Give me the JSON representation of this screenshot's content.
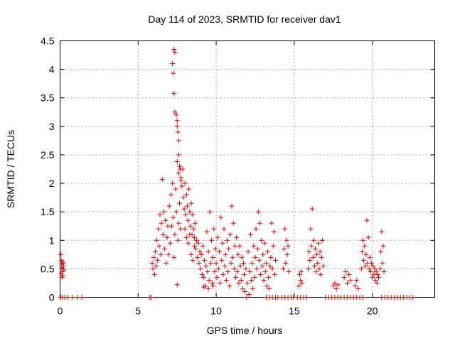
{
  "chart_data": {
    "type": "scatter",
    "title": "Day 114 of 2023, SRMTID for receiver dav1",
    "xlabel": "GPS time / hours",
    "ylabel": "SRMTID / TECUs",
    "xlim": [
      0,
      24
    ],
    "ylim": [
      0,
      4.5
    ],
    "xticks": [
      0,
      5,
      10,
      15,
      20
    ],
    "xtick_labels": [
      "0",
      "5",
      "10",
      "15",
      "20"
    ],
    "yticks": [
      0,
      0.5,
      1,
      1.5,
      2,
      2.5,
      3,
      3.5,
      4,
      4.5
    ],
    "ytick_labels": [
      "0",
      "0.5",
      "1",
      "1.5",
      "2",
      "2.5",
      "3",
      "3.5",
      "4",
      "4.5"
    ],
    "grid": true,
    "marker": "+",
    "color": "#e00000",
    "series": [
      {
        "name": "dav1",
        "points": [
          [
            0.05,
            0.75
          ],
          [
            0.08,
            0.65
          ],
          [
            0.1,
            0.58
          ],
          [
            0.12,
            0.52
          ],
          [
            0.15,
            0.45
          ],
          [
            0.18,
            0.38
          ],
          [
            0.2,
            0.6
          ],
          [
            0.22,
            0.55
          ],
          [
            0.25,
            0.48
          ],
          [
            0.07,
            0.42
          ],
          [
            0.12,
            0.35
          ],
          [
            0.17,
            0.62
          ],
          [
            0.05,
            0
          ],
          [
            0.15,
            0
          ],
          [
            0.3,
            0
          ],
          [
            0.5,
            0
          ],
          [
            0.8,
            0
          ],
          [
            1.1,
            0
          ],
          [
            1.4,
            0
          ],
          [
            5.75,
            0
          ],
          [
            5.85,
            0
          ],
          [
            5.9,
            0.6
          ],
          [
            5.95,
            0.5
          ],
          [
            6.0,
            0.7
          ],
          [
            6.05,
            0.4
          ],
          [
            6.1,
            0.8
          ],
          [
            6.15,
            0.55
          ],
          [
            6.2,
            1.0
          ],
          [
            6.25,
            0.65
          ],
          [
            6.3,
            1.2
          ],
          [
            6.35,
            0.9
          ],
          [
            6.4,
            1.45
          ],
          [
            6.45,
            0.75
          ],
          [
            6.5,
            1.3
          ],
          [
            6.55,
            2.07
          ],
          [
            6.6,
            1.1
          ],
          [
            6.65,
            1.5
          ],
          [
            6.7,
            0.85
          ],
          [
            6.75,
            1.35
          ],
          [
            6.8,
            0.6
          ],
          [
            6.85,
            1.05
          ],
          [
            6.9,
            1.25
          ],
          [
            6.95,
            0.75
          ],
          [
            7.0,
            1.6
          ],
          [
            7.05,
            0.95
          ],
          [
            7.1,
            1.8
          ],
          [
            7.15,
            1.25
          ],
          [
            7.2,
            2.0
          ],
          [
            7.25,
            1.4
          ],
          [
            7.3,
            0.7
          ],
          [
            7.35,
            1.1
          ],
          [
            7.4,
            1.9
          ],
          [
            7.45,
            1.5
          ],
          [
            7.5,
            0.22
          ],
          [
            7.55,
            1.0
          ],
          [
            7.6,
            1.3
          ],
          [
            7.65,
            1.65
          ],
          [
            7.7,
            1.2
          ],
          [
            7.2,
            4.1
          ],
          [
            7.25,
            3.93
          ],
          [
            7.3,
            3.58
          ],
          [
            7.35,
            3.25
          ],
          [
            7.3,
            4.35
          ],
          [
            7.35,
            4.3
          ],
          [
            7.45,
            3.2
          ],
          [
            7.5,
            3.0
          ],
          [
            7.55,
            2.9
          ],
          [
            7.6,
            2.75
          ],
          [
            7.5,
            3.1
          ],
          [
            7.6,
            2.5
          ],
          [
            7.65,
            2.3
          ],
          [
            7.7,
            2.25
          ],
          [
            7.75,
            2.05
          ],
          [
            7.5,
            2.38
          ],
          [
            7.6,
            2.18
          ],
          [
            7.75,
            2.1
          ],
          [
            7.8,
            1.95
          ],
          [
            7.85,
            2.25
          ],
          [
            7.9,
            1.75
          ],
          [
            7.95,
            1.55
          ],
          [
            8.0,
            2.0
          ],
          [
            8.05,
            1.45
          ],
          [
            8.1,
            1.8
          ],
          [
            8.15,
            1.6
          ],
          [
            8.2,
            1.35
          ],
          [
            8.25,
            1.9
          ],
          [
            8.3,
            1.5
          ],
          [
            8.35,
            1.25
          ],
          [
            8.4,
            1.65
          ],
          [
            8.45,
            1.1
          ],
          [
            8.5,
            1.45
          ],
          [
            8.55,
            1.2
          ],
          [
            8.6,
            0.9
          ],
          [
            8.65,
            1.3
          ],
          [
            8.7,
            0.85
          ],
          [
            8.75,
            1.0
          ],
          [
            8.8,
            0.7
          ],
          [
            8.85,
            0.95
          ],
          [
            8.9,
            0.6
          ],
          [
            8.95,
            0.8
          ],
          [
            8.0,
            1.2
          ],
          [
            8.1,
            1.05
          ],
          [
            8.2,
            0.95
          ],
          [
            8.3,
            1.1
          ],
          [
            8.4,
            0.75
          ],
          [
            8.5,
            0.65
          ],
          [
            8.6,
            1.05
          ],
          [
            9.0,
            0.5
          ],
          [
            9.05,
            0.75
          ],
          [
            9.1,
            0.4
          ],
          [
            9.15,
            0.9
          ],
          [
            9.2,
            0.35
          ],
          [
            9.25,
            0.65
          ],
          [
            9.3,
            0.2
          ],
          [
            9.35,
            0.55
          ],
          [
            9.4,
            1.15
          ],
          [
            9.45,
            0.45
          ],
          [
            9.5,
            0.8
          ],
          [
            9.55,
            0.3
          ],
          [
            9.6,
            1.5
          ],
          [
            9.65,
            0.6
          ],
          [
            9.7,
            1.0
          ],
          [
            9.75,
            0.25
          ],
          [
            9.8,
            0.7
          ],
          [
            9.85,
            1.2
          ],
          [
            9.9,
            0.45
          ],
          [
            9.95,
            0.85
          ],
          [
            9.2,
            0.18
          ],
          [
            9.5,
            0.15
          ],
          [
            9.8,
            0.2
          ],
          [
            10.0,
            0.6
          ],
          [
            10.05,
            0.35
          ],
          [
            10.1,
            1.05
          ],
          [
            10.15,
            0.5
          ],
          [
            10.2,
            0.8
          ],
          [
            10.25,
            0.25
          ],
          [
            10.3,
            1.4
          ],
          [
            10.35,
            0.65
          ],
          [
            10.4,
            0.95
          ],
          [
            10.45,
            0.4
          ],
          [
            10.5,
            1.2
          ],
          [
            10.55,
            0.55
          ],
          [
            10.6,
            0.75
          ],
          [
            10.65,
            0.3
          ],
          [
            10.7,
            1.0
          ],
          [
            10.75,
            0.45
          ],
          [
            10.8,
            0.85
          ],
          [
            10.85,
            0.2
          ],
          [
            10.9,
            1.1
          ],
          [
            10.95,
            0.6
          ],
          [
            11.0,
            1.6
          ],
          [
            11.05,
            0.7
          ],
          [
            11.1,
            1.3
          ],
          [
            11.15,
            0.5
          ],
          [
            11.2,
            0.9
          ],
          [
            11.25,
            0.35
          ],
          [
            11.3,
            1.05
          ],
          [
            11.35,
            0.45
          ],
          [
            11.4,
            0.75
          ],
          [
            11.45,
            0.25
          ],
          [
            11.5,
            0.9
          ],
          [
            11.55,
            0.55
          ],
          [
            11.6,
            0.3
          ],
          [
            11.65,
            0.7
          ],
          [
            11.7,
            0.15
          ],
          [
            11.75,
            0.6
          ],
          [
            11.8,
            0.4
          ],
          [
            11.85,
            0.1
          ],
          [
            11.9,
            0.5
          ],
          [
            11.95,
            0
          ],
          [
            12.0,
            0.25
          ],
          [
            12.05,
            0.8
          ],
          [
            12.1,
            0.05
          ],
          [
            12.15,
            0.45
          ],
          [
            12.2,
            1.1
          ],
          [
            12.25,
            0.3
          ],
          [
            12.3,
            0.6
          ],
          [
            12.35,
            0.15
          ],
          [
            12.4,
            0.9
          ],
          [
            12.45,
            0.35
          ],
          [
            12.5,
            0.7
          ],
          [
            12.55,
            1.2
          ],
          [
            12.6,
            0.5
          ],
          [
            12.65,
            0.85
          ],
          [
            12.7,
            1.5
          ],
          [
            12.75,
            0.65
          ],
          [
            12.8,
            1.3
          ],
          [
            12.85,
            0.4
          ],
          [
            12.9,
            1.0
          ],
          [
            12.95,
            0.55
          ],
          [
            13.0,
            0.75
          ],
          [
            13.05,
            0.3
          ],
          [
            13.1,
            0.95
          ],
          [
            13.15,
            0.45
          ],
          [
            13.2,
            0.6
          ],
          [
            13.25,
            0.2
          ],
          [
            13.3,
            0.8
          ],
          [
            13.35,
            0.35
          ],
          [
            13.4,
            0.15
          ],
          [
            13.45,
            0.55
          ],
          [
            13.5,
            0.7
          ],
          [
            13.55,
            1.3
          ],
          [
            13.6,
            0.5
          ],
          [
            13.65,
            0.9
          ],
          [
            13.7,
            1.15
          ],
          [
            13.75,
            0.4
          ],
          [
            13.8,
            0.65
          ],
          [
            13.2,
            0
          ],
          [
            13.4,
            0
          ],
          [
            13.6,
            0
          ],
          [
            13.8,
            0
          ],
          [
            13.95,
            0
          ],
          [
            14.3,
            0.5
          ],
          [
            14.35,
            0.85
          ],
          [
            14.4,
            1.2
          ],
          [
            14.45,
            0.6
          ],
          [
            14.5,
            1.0
          ],
          [
            14.55,
            0.75
          ],
          [
            14.6,
            0.9
          ],
          [
            14.65,
            0.45
          ],
          [
            14.2,
            0
          ],
          [
            14.4,
            0
          ],
          [
            14.6,
            0
          ],
          [
            14.8,
            0
          ],
          [
            14.95,
            0
          ],
          [
            15.3,
            0.2
          ],
          [
            15.35,
            0.4
          ],
          [
            15.4,
            0.3
          ],
          [
            15.45,
            0.45
          ],
          [
            15.5,
            0.25
          ],
          [
            15.2,
            0
          ],
          [
            15.4,
            0
          ],
          [
            15.6,
            0
          ],
          [
            15.8,
            0
          ],
          [
            15.9,
            0.5
          ],
          [
            15.95,
            0.8
          ],
          [
            16.0,
            0.65
          ],
          [
            16.05,
            1.2
          ],
          [
            16.1,
            0.9
          ],
          [
            16.15,
            1.55
          ],
          [
            16.2,
            0.7
          ],
          [
            16.25,
            1.0
          ],
          [
            16.3,
            0.55
          ],
          [
            16.35,
            0.85
          ],
          [
            16.4,
            0.45
          ],
          [
            16.45,
            0.75
          ],
          [
            16.5,
            0.6
          ],
          [
            16.55,
            0.95
          ],
          [
            16.6,
            0.5
          ],
          [
            16.65,
            0.8
          ],
          [
            16.7,
            0.4
          ],
          [
            16.75,
            0.7
          ],
          [
            16.8,
            1.0
          ],
          [
            16.85,
            0.55
          ],
          [
            17.0,
            0
          ],
          [
            17.2,
            0
          ],
          [
            17.4,
            0
          ],
          [
            17.6,
            0
          ],
          [
            17.8,
            0
          ],
          [
            18.0,
            0
          ],
          [
            18.2,
            0
          ],
          [
            18.4,
            0
          ],
          [
            18.6,
            0
          ],
          [
            18.8,
            0
          ],
          [
            19.0,
            0
          ],
          [
            19.2,
            0
          ],
          [
            19.4,
            0
          ],
          [
            17.5,
            0.2
          ],
          [
            17.6,
            0.25
          ],
          [
            17.7,
            0.15
          ],
          [
            17.8,
            0.22
          ],
          [
            18.2,
            0.35
          ],
          [
            18.3,
            0.45
          ],
          [
            18.4,
            0.25
          ],
          [
            18.5,
            0.4
          ],
          [
            18.6,
            0.3
          ],
          [
            18.9,
            0.2
          ],
          [
            19.0,
            0.3
          ],
          [
            19.1,
            0.15
          ],
          [
            19.3,
            0.5
          ],
          [
            19.35,
            0.8
          ],
          [
            19.4,
            1.0
          ],
          [
            19.45,
            0.65
          ],
          [
            19.5,
            0.9
          ],
          [
            19.55,
            0.55
          ],
          [
            19.6,
            0.75
          ],
          [
            19.65,
            1.35
          ],
          [
            19.7,
            0.6
          ],
          [
            19.75,
            1.05
          ],
          [
            19.8,
            0.5
          ],
          [
            19.85,
            0.7
          ],
          [
            19.9,
            0.45
          ],
          [
            19.95,
            0.6
          ],
          [
            20.0,
            0.35
          ],
          [
            20.05,
            0.55
          ],
          [
            20.1,
            0.4
          ],
          [
            20.15,
            0.5
          ],
          [
            20.2,
            0.3
          ],
          [
            20.25,
            0.45
          ],
          [
            20.3,
            0.25
          ],
          [
            20.35,
            0.4
          ],
          [
            20.4,
            0.35
          ],
          [
            20.5,
            0.5
          ],
          [
            20.55,
            0.8
          ],
          [
            20.6,
            1.15
          ],
          [
            20.65,
            0.6
          ],
          [
            20.7,
            0.9
          ],
          [
            20.75,
            0.45
          ],
          [
            20.6,
            0
          ],
          [
            20.8,
            0
          ],
          [
            21.0,
            0
          ],
          [
            21.2,
            0
          ],
          [
            21.4,
            0
          ],
          [
            21.6,
            0
          ],
          [
            21.8,
            0
          ],
          [
            22.0,
            0
          ],
          [
            22.2,
            0
          ],
          [
            22.4,
            0
          ],
          [
            22.6,
            0
          ]
        ]
      }
    ]
  }
}
